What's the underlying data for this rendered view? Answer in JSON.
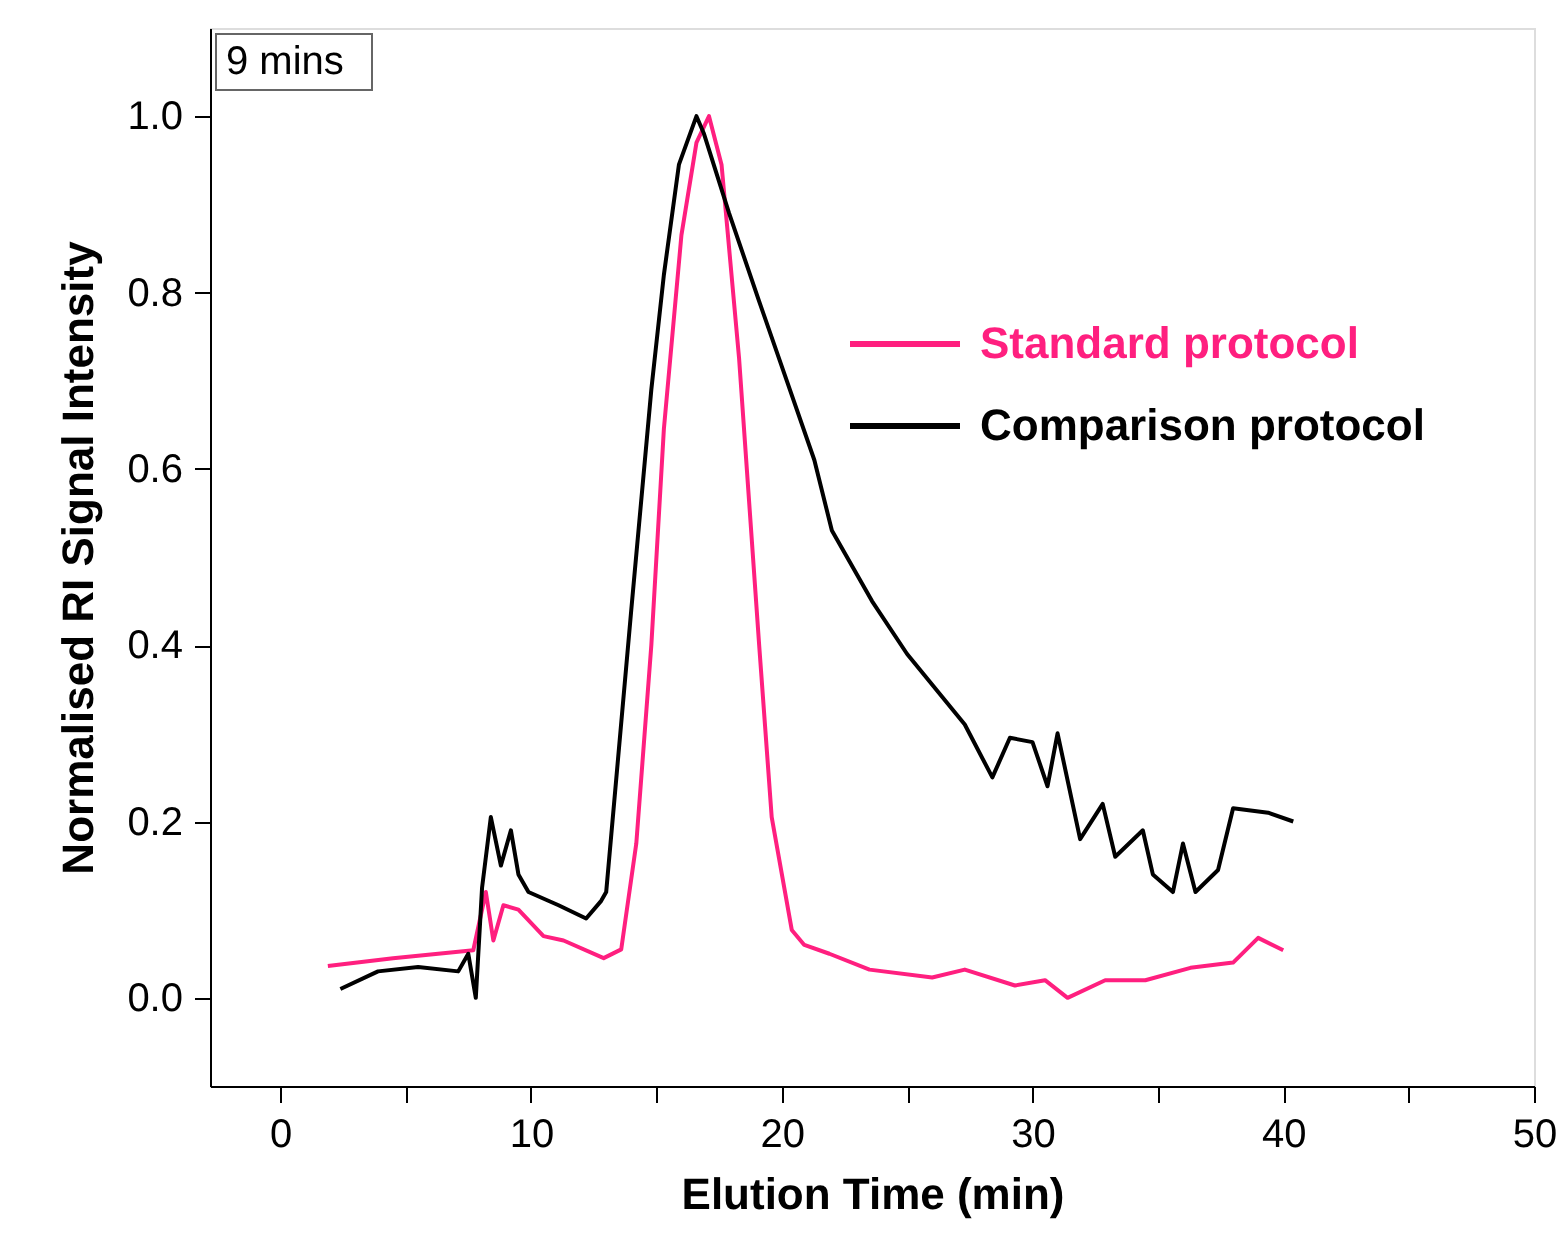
{
  "chart_data": {
    "type": "line",
    "xlabel": "Elution Time (min)",
    "ylabel": "Normalised RI Signal Intensity",
    "annotations": [
      "9 mins"
    ],
    "xlim": [
      -2.8,
      50
    ],
    "ylim": [
      -0.1,
      1.1
    ],
    "xticks": [
      0,
      {
        "value": 5,
        "label": null
      },
      10,
      {
        "value": 15,
        "label": null
      },
      20,
      {
        "value": 25,
        "label": null
      },
      30,
      {
        "value": 35,
        "label": null
      },
      40,
      {
        "value": 45,
        "label": null
      },
      50
    ],
    "yticks": [
      {
        "value": 0,
        "label": "0.0"
      },
      0.2,
      0.4,
      0.6,
      0.8,
      {
        "value": 1,
        "label": "1.0"
      }
    ],
    "grid": false,
    "legend": "top right",
    "marker": "none",
    "line_style": "solid",
    "series": [
      {
        "name": "Standard protocol",
        "color": "#ff1f7f",
        "x": [
          1.9,
          4.5,
          7.7,
          8.2,
          8.5,
          8.9,
          9.5,
          10.5,
          11.3,
          12.9,
          13.6,
          14.2,
          14.8,
          15.3,
          16.0,
          16.6,
          17.1,
          17.6,
          18.3,
          19.1,
          19.6,
          20.4,
          20.9,
          21.9,
          23.5,
          26.0,
          27.3,
          29.3,
          30.5,
          31.4,
          32.9,
          34.5,
          36.3,
          38.0,
          39.0,
          40.0
        ],
        "values": [
          0.036,
          0.045,
          0.054,
          0.12,
          0.065,
          0.105,
          0.1,
          0.07,
          0.065,
          0.045,
          0.055,
          0.175,
          0.4,
          0.645,
          0.865,
          0.97,
          1.0,
          0.945,
          0.725,
          0.4,
          0.205,
          0.077,
          0.06,
          0.05,
          0.032,
          0.023,
          0.032,
          0.014,
          0.02,
          0.0,
          0.02,
          0.02,
          0.034,
          0.04,
          0.068,
          0.054
        ]
      },
      {
        "name": "Comparison protocol",
        "color": "#000000",
        "x": [
          2.4,
          3.9,
          5.5,
          7.1,
          7.5,
          7.8,
          8.05,
          8.4,
          8.8,
          9.2,
          9.5,
          9.9,
          11.1,
          12.2,
          12.8,
          13.0,
          14.0,
          14.8,
          15.3,
          15.9,
          16.6,
          16.9,
          17.9,
          19.1,
          20.2,
          21.3,
          22.0,
          23.6,
          25.0,
          27.3,
          28.4,
          29.1,
          30.0,
          30.6,
          31.0,
          31.9,
          32.8,
          33.3,
          34.4,
          34.8,
          35.6,
          36.0,
          36.5,
          37.4,
          38.0,
          39.4,
          40.4
        ],
        "values": [
          0.01,
          0.03,
          0.035,
          0.03,
          0.05,
          0.0,
          0.125,
          0.205,
          0.15,
          0.19,
          0.14,
          0.12,
          0.105,
          0.09,
          0.11,
          0.12,
          0.44,
          0.69,
          0.82,
          0.945,
          1.0,
          0.98,
          0.89,
          0.79,
          0.7,
          0.61,
          0.53,
          0.45,
          0.39,
          0.31,
          0.25,
          0.295,
          0.29,
          0.24,
          0.3,
          0.18,
          0.22,
          0.16,
          0.19,
          0.14,
          0.12,
          0.175,
          0.12,
          0.145,
          0.215,
          0.21,
          0.2
        ]
      }
    ]
  }
}
